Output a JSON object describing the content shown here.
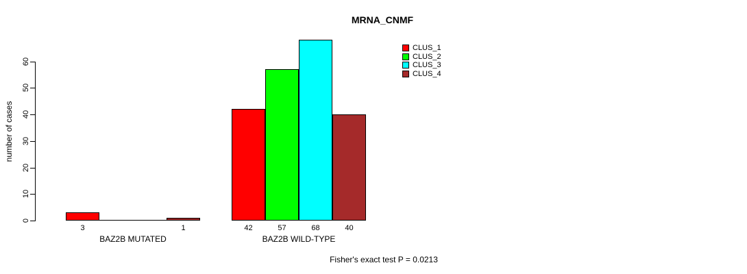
{
  "figure": {
    "background": "#ffffff"
  },
  "chart_data": {
    "type": "bar",
    "title": "MRNA_CNMF",
    "ylabel": "number of cases",
    "xlabel": "",
    "ylim": [
      0,
      68
    ],
    "yticks": [
      0,
      10,
      20,
      30,
      40,
      50,
      60
    ],
    "grid": false,
    "legend_position": "top-right",
    "series": [
      {
        "name": "CLUS_1",
        "color": "#ff0000"
      },
      {
        "name": "CLUS_2",
        "color": "#00ff00"
      },
      {
        "name": "CLUS_3",
        "color": "#00ffff"
      },
      {
        "name": "CLUS_4",
        "color": "#a52a2a"
      }
    ],
    "categories": [
      "BAZ2B MUTATED",
      "BAZ2B WILD-TYPE"
    ],
    "groups": [
      {
        "label": "BAZ2B MUTATED",
        "values": [
          3,
          0,
          0,
          1
        ],
        "bar_labels": [
          "3",
          "",
          "",
          "1"
        ]
      },
      {
        "label": "BAZ2B WILD-TYPE",
        "values": [
          42,
          57,
          68,
          40
        ],
        "bar_labels": [
          "42",
          "57",
          "68",
          "40"
        ]
      }
    ],
    "annotation": "Fisher's exact test P = 0.0213"
  }
}
